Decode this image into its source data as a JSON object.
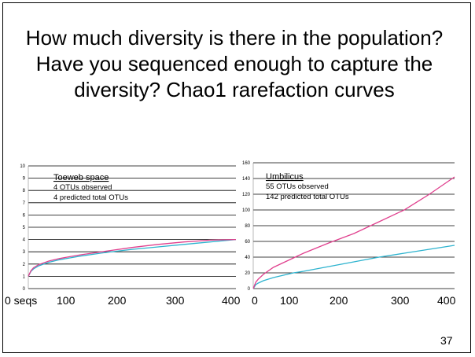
{
  "slide": {
    "title_lines": [
      "How much diversity is there in the population?",
      "Have you sequenced enough to capture the",
      "diversity? Chao1 rarefaction curves"
    ],
    "page_number": "37"
  },
  "colors": {
    "observed": "#2db3cf",
    "predicted": "#e0408e",
    "grid": "#000000"
  },
  "bottom_axis": {
    "left_labels": [
      "0 seqs",
      "100",
      "200",
      "300",
      "400"
    ],
    "right_labels": [
      "0",
      "100",
      "200",
      "300",
      "400"
    ]
  },
  "chart_data": [
    {
      "type": "line",
      "title": "Toeweb space",
      "annotations": [
        "4 OTUs observed",
        "4 predicted total OTUs"
      ],
      "ylim": [
        0,
        10
      ],
      "y_ticks": [
        "0",
        "1",
        "2",
        "3",
        "4",
        "5",
        "6",
        "7",
        "8",
        "9",
        "10"
      ],
      "xlim": [
        0,
        400
      ],
      "grid": true,
      "series": [
        {
          "key": "observed",
          "values_x": [
            0,
            5,
            10,
            20,
            30,
            40,
            60,
            80,
            100,
            150,
            200,
            250,
            300,
            350,
            400
          ],
          "values_y": [
            1.0,
            1.4,
            1.6,
            1.85,
            2.0,
            2.15,
            2.35,
            2.5,
            2.65,
            2.95,
            3.2,
            3.4,
            3.6,
            3.8,
            4.0
          ]
        },
        {
          "key": "predicted",
          "values_x": [
            0,
            5,
            10,
            20,
            30,
            40,
            60,
            80,
            100,
            150,
            200,
            250,
            300,
            350,
            400
          ],
          "values_y": [
            1.0,
            1.45,
            1.7,
            1.95,
            2.1,
            2.25,
            2.45,
            2.6,
            2.75,
            3.05,
            3.35,
            3.6,
            3.8,
            3.95,
            4.0
          ]
        }
      ]
    },
    {
      "type": "line",
      "title": "Umbilicus",
      "annotations": [
        "55 OTUs observed",
        "142 predicted total OTUs"
      ],
      "ylim": [
        0,
        160
      ],
      "y_ticks": [
        "0",
        "20",
        "40",
        "60",
        "80",
        "100",
        "120",
        "140",
        "160"
      ],
      "xlim": [
        0,
        400
      ],
      "grid": true,
      "series": [
        {
          "key": "observed",
          "values_x": [
            0,
            5,
            10,
            20,
            40,
            60,
            80,
            100,
            150,
            200,
            250,
            300,
            350,
            400
          ],
          "values_y": [
            0,
            5,
            7,
            10,
            14,
            17,
            20,
            22,
            28,
            34,
            40,
            45,
            50,
            55
          ]
        },
        {
          "key": "predicted",
          "values_x": [
            0,
            5,
            10,
            20,
            40,
            60,
            80,
            100,
            150,
            200,
            250,
            300,
            350,
            400
          ],
          "values_y": [
            0,
            8,
            12,
            18,
            27,
            33,
            39,
            45,
            58,
            70,
            85,
            100,
            120,
            142
          ]
        }
      ]
    }
  ]
}
